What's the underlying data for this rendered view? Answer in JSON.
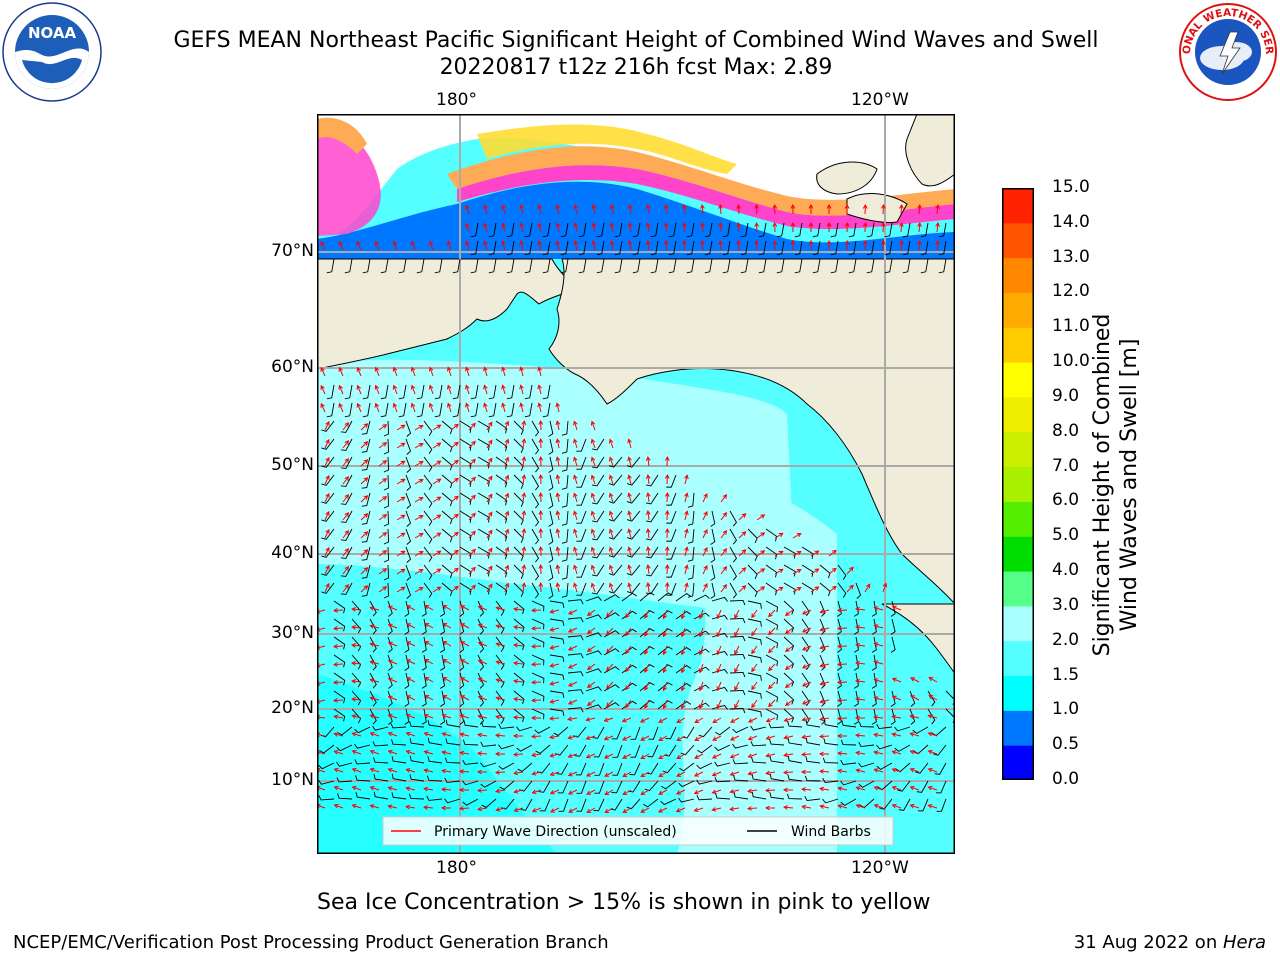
{
  "header": {
    "title_line1": "GEFS MEAN Northeast Pacific Significant Height of Combined Wind Waves and Swell",
    "title_line2": "20220817 t12z 216h fcst   Max: 2.89"
  },
  "logos": {
    "left": {
      "icon": "noaa-logo",
      "text": "NOAA"
    },
    "right": {
      "icon": "national-weather-service-logo",
      "text": "NATIONAL WEATHER SERVICE"
    }
  },
  "map": {
    "lon_labels": [
      "180°",
      "120°W"
    ],
    "lat_labels": [
      "70°N",
      "60°N",
      "50°N",
      "40°N",
      "30°N",
      "20°N",
      "10°N"
    ],
    "legend": {
      "wave_label": "Primary Wave Direction (unscaled)",
      "wave_color": "#ff0000",
      "wind_label": "Wind Barbs",
      "wind_color": "#000000"
    },
    "colors": {
      "land": "#efedda",
      "ocean_high": "#aaffff",
      "ocean_mid": "#55ffff",
      "ocean_low": "#00ffff",
      "grid": "#aaaaaa",
      "ice_pink": "#ff44cc",
      "ice_orange": "#ffaa55",
      "ice_yellow": "#ffdd33"
    }
  },
  "colorbar": {
    "label_line1": "Significant Height of Combined",
    "label_line2": "Wind Waves and Swell [m]",
    "ticks": [
      "0.0",
      "0.5",
      "1.0",
      "1.5",
      "2.0",
      "3.0",
      "4.0",
      "5.0",
      "6.0",
      "7.0",
      "8.0",
      "9.0",
      "10.0",
      "11.0",
      "12.0",
      "13.0",
      "14.0",
      "15.0"
    ],
    "colors": [
      "#0000ff",
      "#0077ff",
      "#00ffff",
      "#55ffff",
      "#aaffff",
      "#55ff88",
      "#00dd00",
      "#55ee00",
      "#aaee00",
      "#ccee00",
      "#eeee00",
      "#ffff00",
      "#ffcc00",
      "#ffaa00",
      "#ff8800",
      "#ff5500",
      "#ff2200"
    ]
  },
  "footer": {
    "note": "Sea Ice Concentration > 15% is shown in pink to yellow",
    "left": "NCEP/EMC/Verification Post Processing Product Generation Branch",
    "date": "31 Aug 2022 on ",
    "machine": "Hera"
  }
}
